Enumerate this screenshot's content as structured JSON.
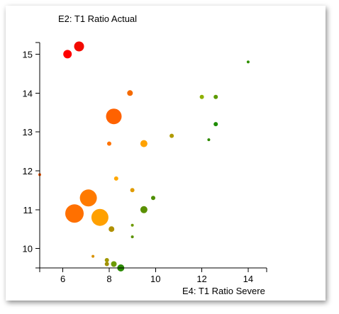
{
  "chart_data": {
    "type": "scatter",
    "title": "",
    "xlabel": "E4: T1 Ratio Severe",
    "ylabel": "E2: T1 Ratio Actual",
    "xlim": [
      5.0,
      14.8
    ],
    "ylim": [
      9.5,
      15.3
    ],
    "xticks": [
      6,
      8,
      10,
      12,
      14
    ],
    "yticks": [
      10,
      11,
      12,
      13,
      14,
      15
    ],
    "grid": false,
    "encoding": "bubble size and color vary per point (red through orange to green)",
    "points": [
      {
        "x": 6.2,
        "y": 15.0,
        "size": 6,
        "color": "#ff0000"
      },
      {
        "x": 6.7,
        "y": 15.2,
        "size": 7,
        "color": "#f20a00"
      },
      {
        "x": 8.9,
        "y": 14.0,
        "size": 4,
        "color": "#f56a00"
      },
      {
        "x": 8.2,
        "y": 13.4,
        "size": 11,
        "color": "#ff6200"
      },
      {
        "x": 8.0,
        "y": 12.7,
        "size": 3,
        "color": "#ff7300"
      },
      {
        "x": 9.5,
        "y": 12.7,
        "size": 5,
        "color": "#ffa200"
      },
      {
        "x": 10.7,
        "y": 12.9,
        "size": 3,
        "color": "#b09a00"
      },
      {
        "x": 12.0,
        "y": 13.9,
        "size": 3,
        "color": "#8eb000"
      },
      {
        "x": 12.6,
        "y": 13.9,
        "size": 3,
        "color": "#5c9a00"
      },
      {
        "x": 12.6,
        "y": 13.2,
        "size": 3,
        "color": "#1d8c00"
      },
      {
        "x": 12.3,
        "y": 12.8,
        "size": 2,
        "color": "#2f8a00"
      },
      {
        "x": 14.0,
        "y": 14.8,
        "size": 2,
        "color": "#2f8f00"
      },
      {
        "x": 5.0,
        "y": 11.9,
        "size": 2,
        "color": "#ff5a00"
      },
      {
        "x": 8.3,
        "y": 11.8,
        "size": 3,
        "color": "#ffa800"
      },
      {
        "x": 9.0,
        "y": 11.5,
        "size": 3,
        "color": "#e09b00"
      },
      {
        "x": 9.9,
        "y": 11.3,
        "size": 3,
        "color": "#4d8e00"
      },
      {
        "x": 7.1,
        "y": 11.3,
        "size": 12,
        "color": "#ff7a00"
      },
      {
        "x": 6.5,
        "y": 10.9,
        "size": 13,
        "color": "#ff7000"
      },
      {
        "x": 7.6,
        "y": 10.8,
        "size": 12,
        "color": "#ffa000"
      },
      {
        "x": 9.5,
        "y": 11.0,
        "size": 5,
        "color": "#5a9000"
      },
      {
        "x": 9.0,
        "y": 10.6,
        "size": 2,
        "color": "#6e9a00"
      },
      {
        "x": 8.1,
        "y": 10.5,
        "size": 4,
        "color": "#b09000"
      },
      {
        "x": 9.0,
        "y": 10.3,
        "size": 2,
        "color": "#5a9200"
      },
      {
        "x": 7.3,
        "y": 9.8,
        "size": 2,
        "color": "#d89200"
      },
      {
        "x": 7.9,
        "y": 9.7,
        "size": 3,
        "color": "#a09800"
      },
      {
        "x": 7.9,
        "y": 9.6,
        "size": 3,
        "color": "#a09000"
      },
      {
        "x": 8.2,
        "y": 9.6,
        "size": 4,
        "color": "#6c9a00"
      },
      {
        "x": 8.5,
        "y": 9.5,
        "size": 5,
        "color": "#2a8a00"
      }
    ]
  }
}
